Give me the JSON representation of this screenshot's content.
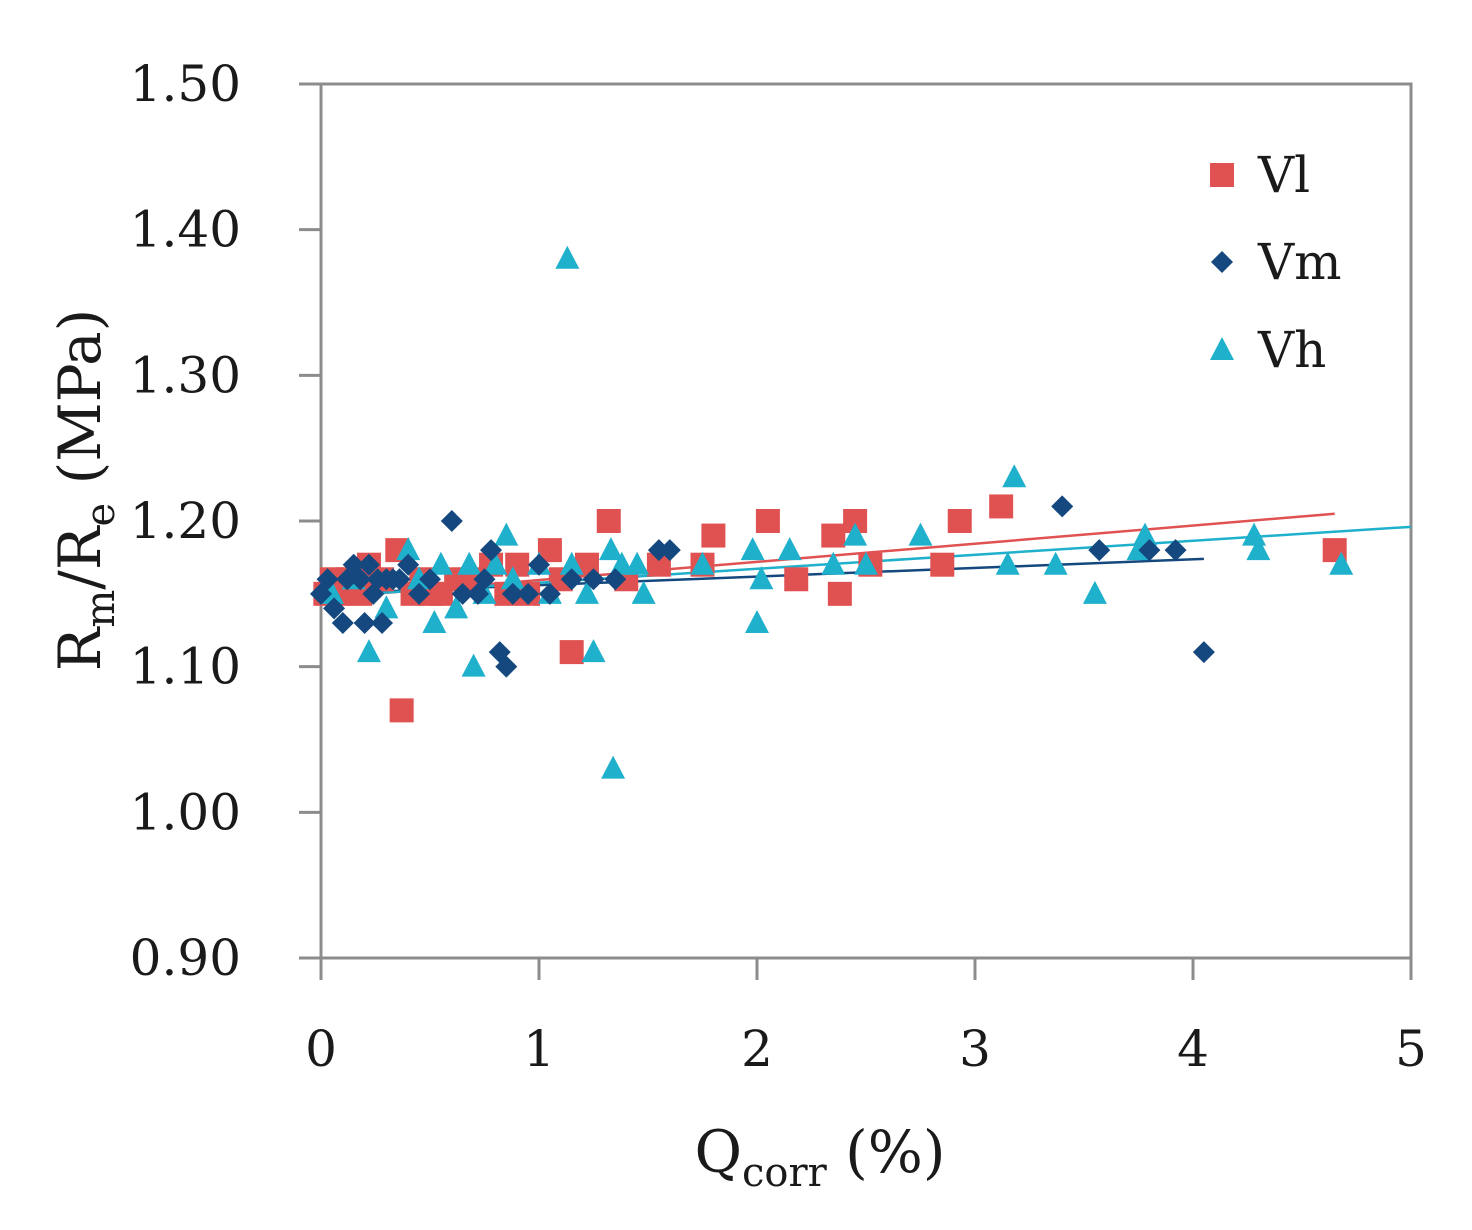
{
  "chart_data": {
    "type": "scatter",
    "x_label": {
      "main": "Q",
      "sub": "corr",
      "rest": " (%)"
    },
    "y_label": {
      "a": "R",
      "a_sub": "m",
      "mid": "/R",
      "b_sub": "e",
      "rest": " (MPa)"
    },
    "xlim": [
      0,
      5
    ],
    "ylim": [
      0.9,
      1.5
    ],
    "x_ticks": [
      "0",
      "1",
      "2",
      "3",
      "4",
      "5"
    ],
    "y_ticks": [
      "0.90",
      "1.00",
      "1.10",
      "1.20",
      "1.30",
      "1.40",
      "1.50"
    ],
    "legend_position": "top-right",
    "series": [
      {
        "name": "Vl",
        "marker": "square",
        "color": "#e05252",
        "trend": {
          "x": [
            0,
            4.65
          ],
          "y": [
            1.147,
            1.205
          ]
        },
        "points": [
          [
            0.02,
            1.15
          ],
          [
            0.05,
            1.16
          ],
          [
            0.08,
            1.15
          ],
          [
            0.12,
            1.16
          ],
          [
            0.18,
            1.15
          ],
          [
            0.22,
            1.17
          ],
          [
            0.28,
            1.16
          ],
          [
            0.35,
            1.18
          ],
          [
            0.37,
            1.07
          ],
          [
            0.42,
            1.15
          ],
          [
            0.46,
            1.16
          ],
          [
            0.5,
            1.15
          ],
          [
            0.55,
            1.15
          ],
          [
            0.62,
            1.16
          ],
          [
            0.7,
            1.16
          ],
          [
            0.78,
            1.17
          ],
          [
            0.85,
            1.15
          ],
          [
            0.9,
            1.17
          ],
          [
            0.95,
            1.15
          ],
          [
            1.05,
            1.18
          ],
          [
            1.1,
            1.16
          ],
          [
            1.15,
            1.11
          ],
          [
            1.22,
            1.17
          ],
          [
            1.32,
            1.2
          ],
          [
            1.4,
            1.16
          ],
          [
            1.55,
            1.17
          ],
          [
            1.75,
            1.17
          ],
          [
            1.8,
            1.19
          ],
          [
            2.05,
            1.2
          ],
          [
            2.18,
            1.16
          ],
          [
            2.35,
            1.19
          ],
          [
            2.38,
            1.15
          ],
          [
            2.45,
            1.2
          ],
          [
            2.52,
            1.17
          ],
          [
            2.85,
            1.17
          ],
          [
            2.93,
            1.2
          ],
          [
            3.12,
            1.21
          ],
          [
            4.65,
            1.18
          ]
        ]
      },
      {
        "name": "Vm",
        "marker": "diamond",
        "color": "#14487f",
        "trend": {
          "x": [
            0,
            4.05
          ],
          "y": [
            1.15,
            1.174
          ]
        },
        "points": [
          [
            0.0,
            1.15
          ],
          [
            0.03,
            1.16
          ],
          [
            0.06,
            1.14
          ],
          [
            0.1,
            1.13
          ],
          [
            0.12,
            1.16
          ],
          [
            0.15,
            1.17
          ],
          [
            0.18,
            1.16
          ],
          [
            0.2,
            1.13
          ],
          [
            0.22,
            1.17
          ],
          [
            0.24,
            1.15
          ],
          [
            0.26,
            1.16
          ],
          [
            0.28,
            1.13
          ],
          [
            0.3,
            1.16
          ],
          [
            0.33,
            1.16
          ],
          [
            0.36,
            1.16
          ],
          [
            0.4,
            1.17
          ],
          [
            0.45,
            1.15
          ],
          [
            0.5,
            1.16
          ],
          [
            0.6,
            1.2
          ],
          [
            0.65,
            1.15
          ],
          [
            0.72,
            1.15
          ],
          [
            0.75,
            1.16
          ],
          [
            0.78,
            1.18
          ],
          [
            0.82,
            1.11
          ],
          [
            0.85,
            1.1
          ],
          [
            0.88,
            1.15
          ],
          [
            0.95,
            1.15
          ],
          [
            1.0,
            1.17
          ],
          [
            1.05,
            1.15
          ],
          [
            1.15,
            1.16
          ],
          [
            1.25,
            1.16
          ],
          [
            1.35,
            1.16
          ],
          [
            1.55,
            1.18
          ],
          [
            1.6,
            1.18
          ],
          [
            3.4,
            1.21
          ],
          [
            3.57,
            1.18
          ],
          [
            3.8,
            1.18
          ],
          [
            3.92,
            1.18
          ],
          [
            4.05,
            1.11
          ]
        ]
      },
      {
        "name": "Vh",
        "marker": "triangle",
        "color": "#1fb0cc",
        "trend": {
          "x": [
            0,
            5
          ],
          "y": [
            1.148,
            1.196
          ]
        },
        "points": [
          [
            0.05,
            1.15
          ],
          [
            0.15,
            1.16
          ],
          [
            0.22,
            1.11
          ],
          [
            0.3,
            1.14
          ],
          [
            0.4,
            1.18
          ],
          [
            0.45,
            1.16
          ],
          [
            0.52,
            1.13
          ],
          [
            0.55,
            1.17
          ],
          [
            0.62,
            1.14
          ],
          [
            0.68,
            1.17
          ],
          [
            0.7,
            1.1
          ],
          [
            0.75,
            1.15
          ],
          [
            0.8,
            1.17
          ],
          [
            0.85,
            1.19
          ],
          [
            0.88,
            1.16
          ],
          [
            1.0,
            1.17
          ],
          [
            1.05,
            1.15
          ],
          [
            1.13,
            1.38
          ],
          [
            1.15,
            1.17
          ],
          [
            1.22,
            1.15
          ],
          [
            1.25,
            1.11
          ],
          [
            1.33,
            1.18
          ],
          [
            1.34,
            1.03
          ],
          [
            1.38,
            1.17
          ],
          [
            1.45,
            1.17
          ],
          [
            1.48,
            1.15
          ],
          [
            1.75,
            1.17
          ],
          [
            1.98,
            1.18
          ],
          [
            2.0,
            1.13
          ],
          [
            2.02,
            1.16
          ],
          [
            2.15,
            1.18
          ],
          [
            2.35,
            1.17
          ],
          [
            2.45,
            1.19
          ],
          [
            2.5,
            1.17
          ],
          [
            2.75,
            1.19
          ],
          [
            3.15,
            1.17
          ],
          [
            3.18,
            1.23
          ],
          [
            3.37,
            1.17
          ],
          [
            3.55,
            1.15
          ],
          [
            3.75,
            1.18
          ],
          [
            3.78,
            1.19
          ],
          [
            4.28,
            1.19
          ],
          [
            4.3,
            1.18
          ],
          [
            4.68,
            1.17
          ]
        ]
      }
    ]
  }
}
